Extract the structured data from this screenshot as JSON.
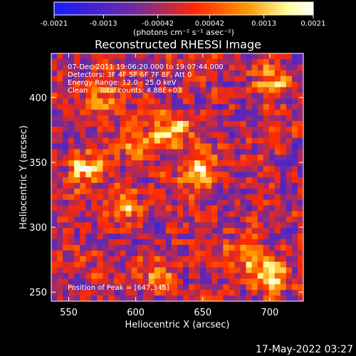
{
  "chart_data": {
    "type": "heatmap",
    "title": "Reconstructed RHESSI Image",
    "xlabel": "Heliocentric X (arcsec)",
    "ylabel": "Heliocentric Y (arcsec)",
    "xlim": [
      537,
      725
    ],
    "ylim": [
      243,
      434
    ],
    "x_ticks": [
      550,
      600,
      650,
      700
    ],
    "y_ticks": [
      250,
      300,
      350,
      400
    ],
    "x_tick_labels": [
      "550",
      "600",
      "650",
      "700"
    ],
    "y_tick_labels": [
      "250",
      "300",
      "350",
      "400"
    ],
    "colorbar": {
      "min": -0.0021,
      "max": 0.0021,
      "tick_values": [
        -0.0021,
        -0.0013,
        -0.00042,
        0.00042,
        0.0013,
        0.0021
      ],
      "tick_labels": [
        "-0.0021",
        "-0.0013",
        "-0.00042",
        "0.00042",
        "0.0013",
        "0.0021"
      ],
      "unit_label": "(photons cm⁻² s⁻¹ asec⁻²)",
      "colormap": [
        "#1a1aff",
        "#6a2aa8",
        "#ff2a00",
        "#ff9a00",
        "#ffff99",
        "#ffffff"
      ]
    },
    "annotations": [
      "07-Dec-2011 19:06:20.000 to 19:07:44.000",
      "Detectors: 3F 4F 5F 6F 7F 8F, Att 0",
      "Energy Range: 12.0 - 25.0 keV",
      "Clean     Total counts: 4.88E+03"
    ],
    "peak_label": "Position of Peak = [647,345]",
    "peak": {
      "x": 647,
      "y": 345
    },
    "hotspots": [
      {
        "x": 647,
        "y": 345,
        "value": 0.0021
      },
      {
        "x": 627,
        "y": 375,
        "value": 0.0019
      },
      {
        "x": 562,
        "y": 346,
        "value": 0.0018
      },
      {
        "x": 601,
        "y": 363,
        "value": 0.0014
      },
      {
        "x": 702,
        "y": 412,
        "value": 0.0015
      },
      {
        "x": 700,
        "y": 262,
        "value": 0.0017
      },
      {
        "x": 680,
        "y": 280,
        "value": 0.0013
      },
      {
        "x": 595,
        "y": 315,
        "value": 0.0012
      },
      {
        "x": 575,
        "y": 400,
        "value": 0.0011
      },
      {
        "x": 615,
        "y": 265,
        "value": 0.001
      }
    ],
    "timestamp": "17-May-2022 03:27"
  }
}
